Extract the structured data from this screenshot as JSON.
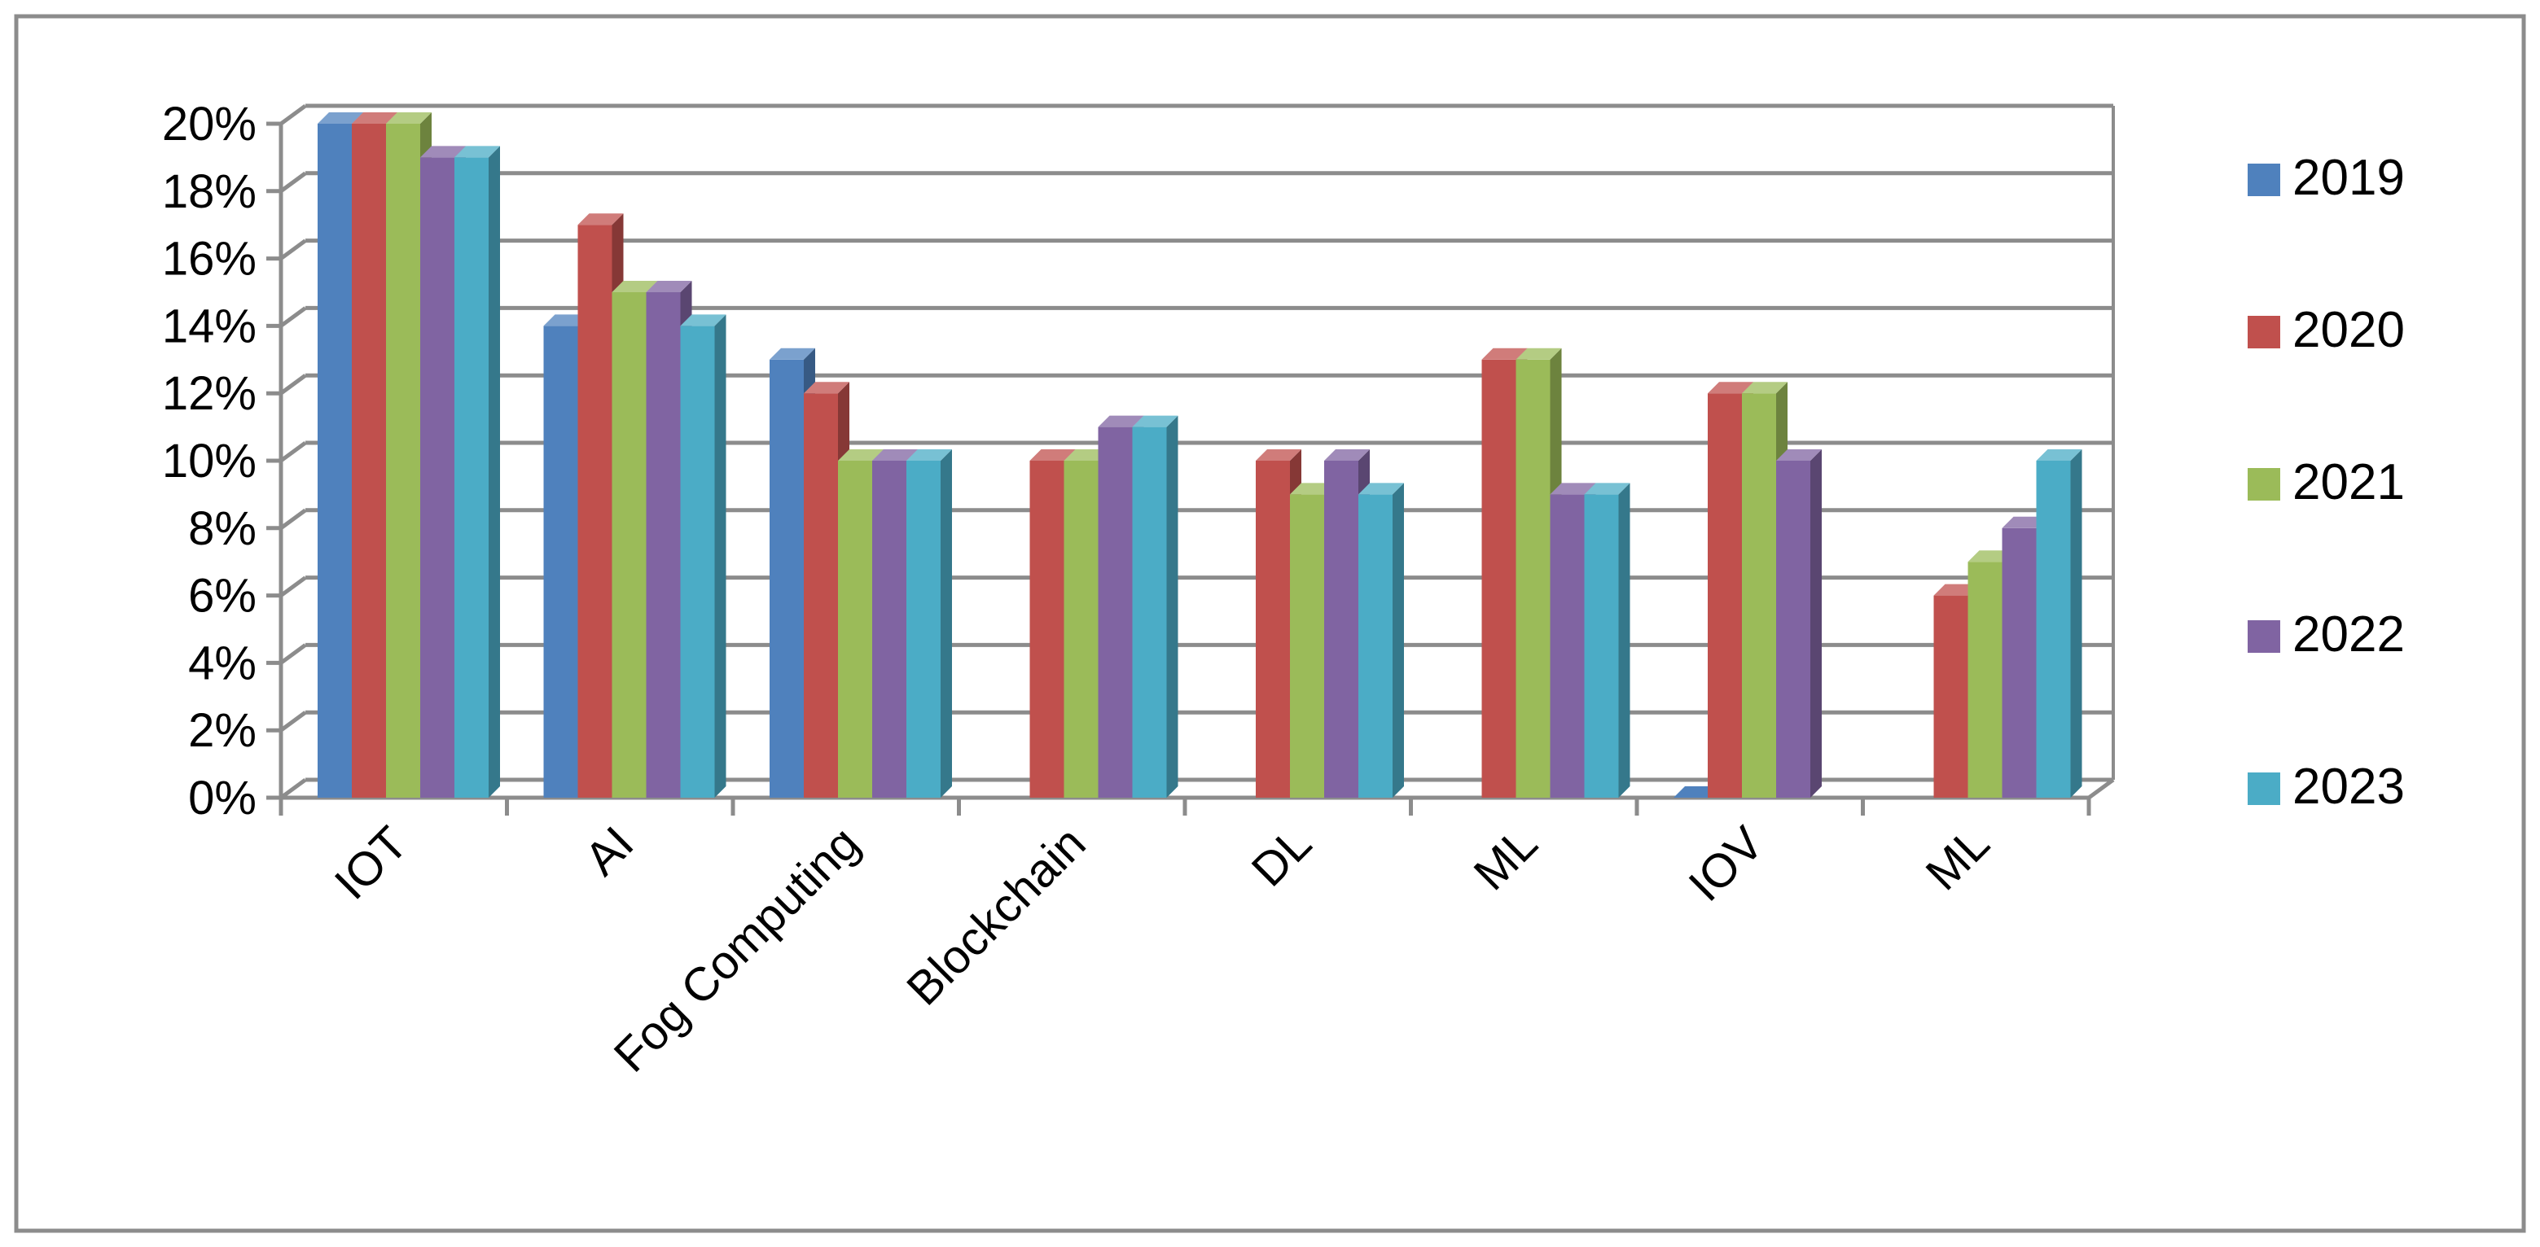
{
  "chart_data": {
    "type": "bar",
    "categories": [
      "IOT",
      "AI",
      "Fog Computing",
      "Blockchain",
      "DL",
      "ML",
      "IOV",
      "ML"
    ],
    "y_ticks": [
      "0%",
      "2%",
      "4%",
      "6%",
      "8%",
      "10%",
      "12%",
      "14%",
      "16%",
      "18%",
      "20%"
    ],
    "ylim": [
      0,
      20
    ],
    "y_unit": "%",
    "grid": true,
    "legend_position": "right",
    "series": [
      {
        "name": "2019",
        "color": "#4F81BD",
        "values": [
          20,
          14,
          13,
          0,
          0,
          0,
          0,
          0
        ]
      },
      {
        "name": "2020",
        "color": "#C0504D",
        "values": [
          20,
          17,
          12,
          10,
          10,
          13,
          12,
          6
        ]
      },
      {
        "name": "2021",
        "color": "#9BBB59",
        "values": [
          20,
          15,
          10,
          10,
          9,
          13,
          12,
          7
        ]
      },
      {
        "name": "2022",
        "color": "#8064A2",
        "values": [
          19,
          15,
          10,
          11,
          10,
          9,
          10,
          8
        ]
      },
      {
        "name": "2023",
        "color": "#4BACC6",
        "values": [
          19,
          14,
          10,
          11,
          9,
          9,
          0,
          10
        ]
      }
    ]
  }
}
